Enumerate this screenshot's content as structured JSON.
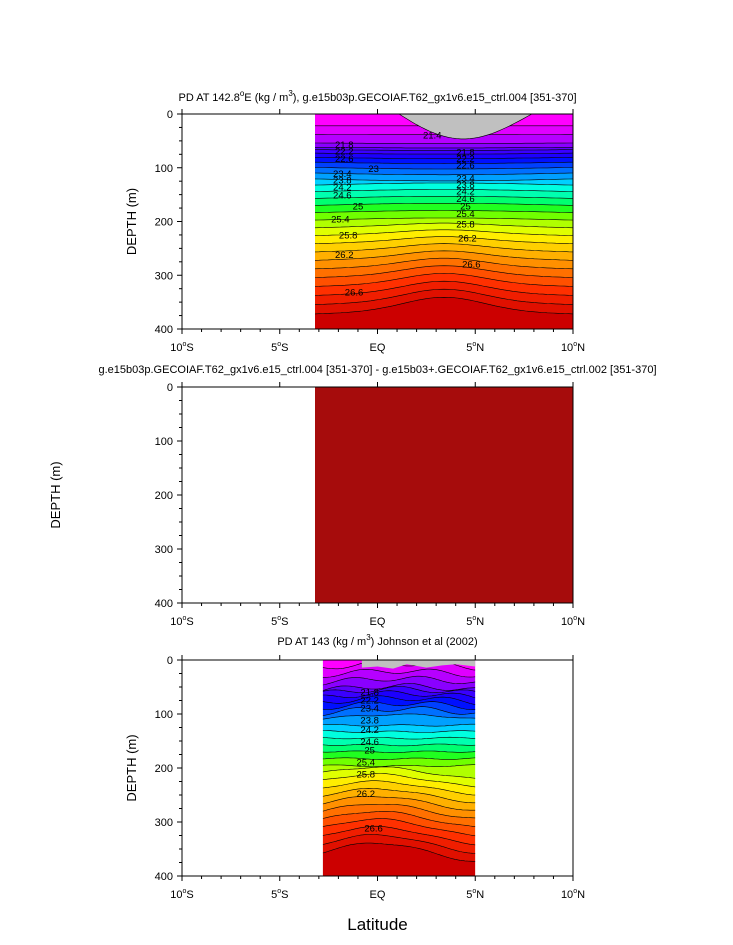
{
  "chart_data": {
    "type": "contour-panels",
    "x_axis": {
      "label": "Latitude",
      "range": [
        -10,
        10
      ],
      "ticks": [
        {
          "value": -10,
          "main": "10",
          "sup": "o",
          "hem": "S"
        },
        {
          "value": -5,
          "main": "5",
          "sup": "o",
          "hem": "S"
        },
        {
          "value": 0,
          "main": "EQ",
          "sup": "",
          "hem": ""
        },
        {
          "value": 5,
          "main": "5",
          "sup": "o",
          "hem": "N"
        },
        {
          "value": 10,
          "main": "10",
          "sup": "o",
          "hem": "N"
        }
      ]
    },
    "y_axis": {
      "label": "DEPTH (m)",
      "range": [
        0,
        400
      ],
      "ticks": [
        0,
        100,
        200,
        300,
        400
      ]
    },
    "panels": [
      {
        "id": "model",
        "title": {
          "before_sup": "PD AT 142.8",
          "sup1": "o",
          "mid": "E (kg / m",
          "sup2": "3",
          "after": "), g.e15b03p.GECOIAF.T62_gx1v6.e15_ctrl.004 [351-370]"
        },
        "show_ylabel": true,
        "lat_extent": [
          -3.2,
          10
        ],
        "missing_color": "#c0c0c0",
        "contour_levels": [
          21.4,
          21.6,
          21.8,
          22.0,
          22.2,
          22.4,
          22.6,
          22.8,
          23.0,
          23.2,
          23.4,
          23.6,
          23.8,
          24.0,
          24.2,
          24.4,
          24.6,
          24.8,
          25.0,
          25.2,
          25.4,
          25.6,
          25.8,
          26.0,
          26.2,
          26.4,
          26.6,
          26.8
        ],
        "contour_labels": [
          {
            "text": "21.4",
            "lat": 2.8,
            "depth": 40
          },
          {
            "text": "21.8",
            "lat": -1.7,
            "depth": 58
          },
          {
            "text": "21.8",
            "lat": 4.5,
            "depth": 72
          },
          {
            "text": "22.2",
            "lat": -1.7,
            "depth": 70
          },
          {
            "text": "22.2",
            "lat": 4.5,
            "depth": 84
          },
          {
            "text": "22.6",
            "lat": -1.7,
            "depth": 84
          },
          {
            "text": "22.6",
            "lat": 4.5,
            "depth": 96
          },
          {
            "text": "23",
            "lat": -0.2,
            "depth": 102
          },
          {
            "text": "23.4",
            "lat": -1.8,
            "depth": 112
          },
          {
            "text": "23.4",
            "lat": 4.5,
            "depth": 120
          },
          {
            "text": "23.8",
            "lat": -1.8,
            "depth": 124
          },
          {
            "text": "23.8",
            "lat": 4.5,
            "depth": 132
          },
          {
            "text": "24.2",
            "lat": -1.8,
            "depth": 137
          },
          {
            "text": "24.2",
            "lat": 4.5,
            "depth": 144
          },
          {
            "text": "24.6",
            "lat": -1.8,
            "depth": 152
          },
          {
            "text": "24.6",
            "lat": 4.5,
            "depth": 158
          },
          {
            "text": "25",
            "lat": -1.0,
            "depth": 172
          },
          {
            "text": "25",
            "lat": 4.5,
            "depth": 172
          },
          {
            "text": "25.4",
            "lat": -1.9,
            "depth": 196
          },
          {
            "text": "25.4",
            "lat": 4.5,
            "depth": 186
          },
          {
            "text": "25.8",
            "lat": -1.5,
            "depth": 226
          },
          {
            "text": "25.8",
            "lat": 4.5,
            "depth": 206
          },
          {
            "text": "26.2",
            "lat": -1.7,
            "depth": 262
          },
          {
            "text": "26.2",
            "lat": 4.6,
            "depth": 232
          },
          {
            "text": "26.6",
            "lat": 4.8,
            "depth": 280
          },
          {
            "text": "26.6",
            "lat": -1.2,
            "depth": 332
          }
        ]
      },
      {
        "id": "difference",
        "title": {
          "before_sup": "g.e15b03p.GECOIAF.T62_gx1v6.e15_ctrl.004 [351-370] - g.e15b03+.GECOIAF.T62_gx1v6.e15_ctrl.002 [351-370]",
          "sup1": "",
          "mid": "",
          "sup2": "",
          "after": ""
        },
        "show_ylabel": true,
        "lat_extent": [
          -3.2,
          10
        ],
        "fill_color": "#a60c0c"
      },
      {
        "id": "observed",
        "title": {
          "before_sup": "PD AT 143 (kg / m",
          "sup1": "3",
          "mid": ") Johnson et al (2002)",
          "sup2": "",
          "after": ""
        },
        "show_ylabel": true,
        "lat_extent": [
          -2.8,
          5
        ],
        "missing_color": "#c0c0c0",
        "contour_levels": [
          21.3,
          21.5,
          21.7,
          21.9,
          22.1,
          22.3,
          22.5,
          22.7,
          22.9,
          23.1,
          23.3,
          23.5,
          23.7,
          23.9,
          24.1,
          24.3,
          24.5,
          24.7,
          24.9,
          25.1,
          25.3,
          25.5,
          25.7,
          25.9,
          26.1,
          26.3,
          26.5,
          26.7
        ],
        "contour_labels": [
          {
            "text": "21.8",
            "lat": -0.4,
            "depth": 60
          },
          {
            "text": "22.2",
            "lat": -0.4,
            "depth": 75
          },
          {
            "text": "23.4",
            "lat": -0.4,
            "depth": 90
          },
          {
            "text": "23.8",
            "lat": -0.4,
            "depth": 112
          },
          {
            "text": "24.2",
            "lat": -0.4,
            "depth": 130
          },
          {
            "text": "24.6",
            "lat": -0.4,
            "depth": 152
          },
          {
            "text": "25",
            "lat": -0.4,
            "depth": 168
          },
          {
            "text": "25.4",
            "lat": -0.6,
            "depth": 190
          },
          {
            "text": "25.8",
            "lat": -0.6,
            "depth": 212
          },
          {
            "text": "26.2",
            "lat": -0.6,
            "depth": 248
          },
          {
            "text": "26.6",
            "lat": -0.2,
            "depth": 312
          }
        ]
      }
    ]
  }
}
